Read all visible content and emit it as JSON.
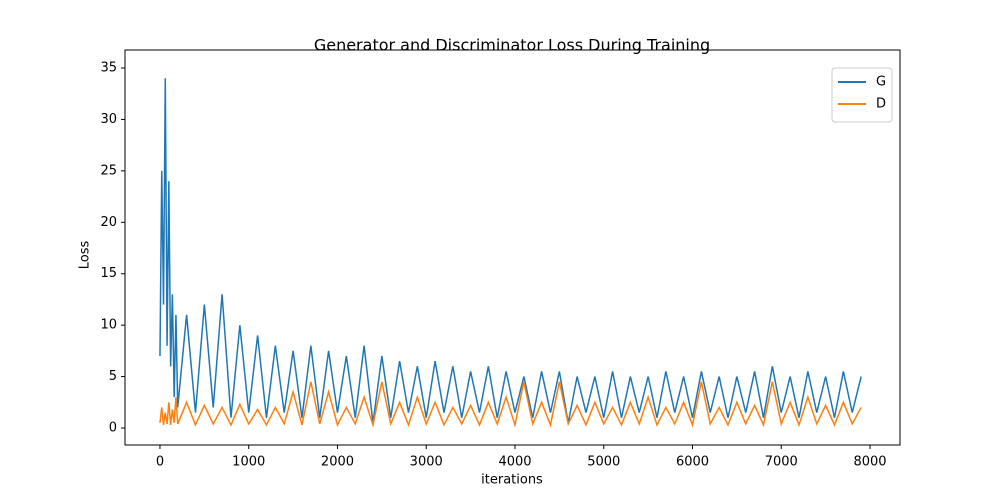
{
  "chart_data": {
    "type": "line",
    "title": "Generator and Discriminator Loss During Training",
    "xlabel": "iterations",
    "ylabel": "Loss",
    "x": [
      0,
      20,
      40,
      60,
      80,
      100,
      120,
      140,
      160,
      180,
      200,
      300,
      400,
      500,
      600,
      700,
      800,
      900,
      1000,
      1100,
      1200,
      1300,
      1400,
      1500,
      1600,
      1700,
      1800,
      1900,
      2000,
      2100,
      2200,
      2300,
      2400,
      2500,
      2600,
      2700,
      2800,
      2900,
      3000,
      3100,
      3200,
      3300,
      3400,
      3500,
      3600,
      3700,
      3800,
      3900,
      4000,
      4100,
      4200,
      4300,
      4400,
      4500,
      4600,
      4700,
      4800,
      4900,
      5000,
      5100,
      5200,
      5300,
      5400,
      5500,
      5600,
      5700,
      5800,
      5900,
      6000,
      6100,
      6200,
      6300,
      6400,
      6500,
      6600,
      6700,
      6800,
      6900,
      7000,
      7100,
      7200,
      7300,
      7400,
      7500,
      7600,
      7700,
      7800,
      7900
    ],
    "series": [
      {
        "name": "G",
        "color": "#1f77b4",
        "values": [
          7,
          25,
          12,
          34,
          8,
          24,
          6,
          13,
          3,
          11,
          2,
          11,
          1.5,
          12,
          2,
          13,
          1,
          10,
          1.5,
          9,
          1,
          8,
          1.5,
          7.5,
          1,
          8,
          1,
          7.5,
          1.5,
          7,
          1,
          8,
          0.5,
          7,
          1,
          6.5,
          1.5,
          6,
          1,
          6.5,
          1.5,
          6,
          1,
          5.5,
          1.5,
          6,
          1,
          5.5,
          1.5,
          5,
          1,
          5.5,
          1.5,
          5.5,
          0.5,
          5,
          1.5,
          5,
          1,
          5.5,
          1,
          5,
          1.5,
          5,
          1,
          5.5,
          1.5,
          5,
          1,
          5.5,
          1.5,
          5,
          1,
          5,
          1.5,
          5.5,
          1,
          6,
          1.5,
          5,
          1,
          5.5,
          1.5,
          5,
          1,
          5.5,
          1.5,
          5
        ]
      },
      {
        "name": "D",
        "color": "#ff7f0e",
        "values": [
          0.5,
          2,
          0.3,
          1.5,
          0.4,
          2.5,
          0.3,
          1.8,
          0.5,
          3,
          0.4,
          2.5,
          0.3,
          2.2,
          0.4,
          2,
          0.3,
          2.3,
          0.4,
          1.8,
          0.3,
          2,
          0.4,
          3.5,
          0.3,
          4.5,
          0.4,
          3.5,
          0.3,
          2,
          0.4,
          3,
          0.3,
          4.5,
          0.4,
          2.5,
          0.3,
          3,
          0.4,
          2.5,
          0.3,
          2,
          0.4,
          2.2,
          0.3,
          2.5,
          0.4,
          3,
          0.3,
          4.5,
          0.4,
          2.5,
          0.3,
          4.5,
          0.4,
          2.2,
          0.3,
          2.5,
          0.4,
          2,
          0.3,
          2.5,
          0.4,
          3,
          0.3,
          2,
          0.4,
          2.5,
          0.3,
          4.5,
          0.4,
          2,
          0.3,
          2.5,
          0.4,
          2.2,
          0.3,
          4.5,
          0.4,
          2.5,
          0.3,
          3,
          0.4,
          2.2,
          0.3,
          2.5,
          0.4,
          2
        ]
      }
    ],
    "xlim": [
      -394,
      8338
    ],
    "ylim": [
      -1.65,
      36.75
    ],
    "xticks": [
      0,
      1000,
      2000,
      3000,
      4000,
      5000,
      6000,
      7000,
      8000
    ],
    "yticks": [
      0,
      5,
      10,
      15,
      20,
      25,
      30,
      35
    ],
    "legend": "upper right"
  }
}
